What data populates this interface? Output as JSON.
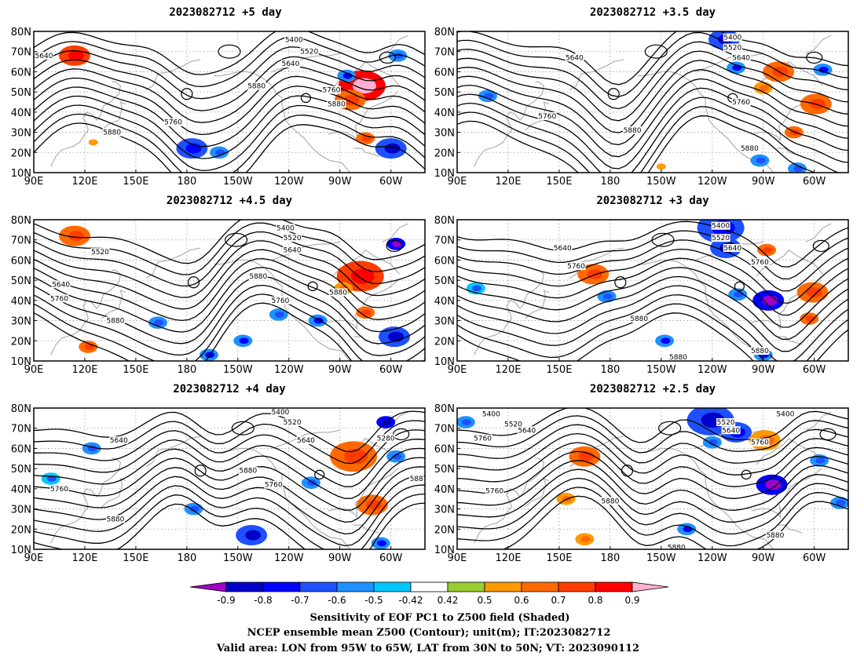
{
  "panels": [
    {
      "id": "p1",
      "title": "2023082712 +5 day",
      "contour_labels": [
        {
          "text": "5640",
          "lon": 96,
          "lat": 68
        },
        {
          "text": "5400",
          "lon": 243,
          "lat": 76
        },
        {
          "text": "5520",
          "lon": 252,
          "lat": 70
        },
        {
          "text": "5640",
          "lon": 241,
          "lat": 64
        },
        {
          "text": "5880",
          "lon": 221,
          "lat": 53
        },
        {
          "text": "5760",
          "lon": 265,
          "lat": 51
        },
        {
          "text": "5880",
          "lon": 268,
          "lat": 44
        },
        {
          "text": "5760",
          "lon": 172,
          "lat": 35
        },
        {
          "text": "5880",
          "lon": 136,
          "lat": 30
        }
      ],
      "blobs": [
        {
          "lon": 114,
          "lat": 68,
          "r": 2,
          "v": 0.7
        },
        {
          "lon": 283,
          "lat": 53,
          "r": 3,
          "v": 0.85
        },
        {
          "lon": 276,
          "lat": 46,
          "r": 2,
          "v": 0.6
        },
        {
          "lon": 285,
          "lat": 27,
          "r": 1,
          "v": 0.6
        },
        {
          "lon": 183,
          "lat": 22,
          "r": 2,
          "v": -0.65
        },
        {
          "lon": 199,
          "lat": 20,
          "r": 1,
          "v": -0.55
        },
        {
          "lon": 300,
          "lat": 22,
          "r": 2,
          "v": -0.7
        },
        {
          "lon": 274,
          "lat": 58,
          "r": 1,
          "v": -0.6
        },
        {
          "lon": 304,
          "lat": 68,
          "r": 1,
          "v": -0.55
        },
        {
          "lon": 125,
          "lat": 25,
          "r": 0,
          "v": 0.5
        }
      ]
    },
    {
      "id": "p2",
      "title": "2023082712 +3.5 day",
      "contour_labels": [
        {
          "text": "5400",
          "lon": 252,
          "lat": 77
        },
        {
          "text": "5520",
          "lon": 252,
          "lat": 72
        },
        {
          "text": "5640",
          "lon": 257,
          "lat": 67
        },
        {
          "text": "5640",
          "lon": 159,
          "lat": 67
        },
        {
          "text": "5760",
          "lon": 257,
          "lat": 45
        },
        {
          "text": "5760",
          "lon": 143,
          "lat": 38
        },
        {
          "text": "5880",
          "lon": 193,
          "lat": 31
        },
        {
          "text": "5880",
          "lon": 262,
          "lat": 22
        }
      ],
      "blobs": [
        {
          "lon": 247,
          "lat": 76,
          "r": 2,
          "v": -0.65
        },
        {
          "lon": 254,
          "lat": 62,
          "r": 1,
          "v": -0.6
        },
        {
          "lon": 279,
          "lat": 60,
          "r": 2,
          "v": 0.6
        },
        {
          "lon": 301,
          "lat": 44,
          "r": 2,
          "v": 0.65
        },
        {
          "lon": 288,
          "lat": 30,
          "r": 1,
          "v": 0.6
        },
        {
          "lon": 108,
          "lat": 48,
          "r": 1,
          "v": -0.55
        },
        {
          "lon": 305,
          "lat": 61,
          "r": 1,
          "v": -0.6
        },
        {
          "lon": 270,
          "lat": 52,
          "r": 1,
          "v": 0.5
        },
        {
          "lon": 268,
          "lat": 16,
          "r": 1,
          "v": -0.55
        },
        {
          "lon": 210,
          "lat": 13,
          "r": 0,
          "v": 0.5
        },
        {
          "lon": 290,
          "lat": 12,
          "r": 1,
          "v": -0.55
        }
      ]
    },
    {
      "id": "p3",
      "title": "2023082712 +4.5 day",
      "contour_labels": [
        {
          "text": "5400",
          "lon": 238,
          "lat": 76
        },
        {
          "text": "5520",
          "lon": 242,
          "lat": 71
        },
        {
          "text": "5640",
          "lon": 242,
          "lat": 65
        },
        {
          "text": "5520",
          "lon": 129,
          "lat": 64
        },
        {
          "text": "5880",
          "lon": 222,
          "lat": 52
        },
        {
          "text": "5640",
          "lon": 106,
          "lat": 48
        },
        {
          "text": "5760",
          "lon": 105,
          "lat": 41
        },
        {
          "text": "5760",
          "lon": 235,
          "lat": 40
        },
        {
          "text": "5880",
          "lon": 269,
          "lat": 44
        },
        {
          "text": "5880",
          "lon": 138,
          "lat": 30
        }
      ],
      "blobs": [
        {
          "lon": 114,
          "lat": 72,
          "r": 2,
          "v": 0.65
        },
        {
          "lon": 282,
          "lat": 52,
          "r": 3,
          "v": 0.75
        },
        {
          "lon": 272,
          "lat": 46,
          "r": 1,
          "v": 0.5
        },
        {
          "lon": 303,
          "lat": 68,
          "r": 1,
          "v": -0.8
        },
        {
          "lon": 302,
          "lat": 22,
          "r": 2,
          "v": -0.7
        },
        {
          "lon": 257,
          "lat": 30,
          "r": 1,
          "v": -0.6
        },
        {
          "lon": 213,
          "lat": 20,
          "r": 1,
          "v": -0.6
        },
        {
          "lon": 193,
          "lat": 13,
          "r": 1,
          "v": -0.6
        },
        {
          "lon": 234,
          "lat": 33,
          "r": 1,
          "v": -0.55
        },
        {
          "lon": 285,
          "lat": 34,
          "r": 1,
          "v": 0.6
        },
        {
          "lon": 122,
          "lat": 17,
          "r": 1,
          "v": 0.6
        },
        {
          "lon": 163,
          "lat": 29,
          "r": 1,
          "v": -0.55
        }
      ]
    },
    {
      "id": "p4",
      "title": "2023082712 +3 day",
      "contour_labels": [
        {
          "text": "5400",
          "lon": 245,
          "lat": 77
        },
        {
          "text": "5520",
          "lon": 245,
          "lat": 71
        },
        {
          "text": "5640",
          "lon": 252,
          "lat": 66
        },
        {
          "text": "5640",
          "lon": 152,
          "lat": 66
        },
        {
          "text": "5760",
          "lon": 160,
          "lat": 57
        },
        {
          "text": "5760",
          "lon": 268,
          "lat": 59
        },
        {
          "text": "5880",
          "lon": 197,
          "lat": 31
        },
        {
          "text": "5880",
          "lon": 268,
          "lat": 15
        },
        {
          "text": "5880",
          "lon": 220,
          "lat": 12
        }
      ],
      "blobs": [
        {
          "lon": 245,
          "lat": 76,
          "r": 3,
          "v": -0.65
        },
        {
          "lon": 248,
          "lat": 66,
          "r": 2,
          "v": -0.7
        },
        {
          "lon": 272,
          "lat": 65,
          "r": 1,
          "v": 0.65
        },
        {
          "lon": 273,
          "lat": 40,
          "r": 2,
          "v": -0.8
        },
        {
          "lon": 299,
          "lat": 44,
          "r": 2,
          "v": 0.6
        },
        {
          "lon": 297,
          "lat": 31,
          "r": 1,
          "v": 0.6
        },
        {
          "lon": 170,
          "lat": 53,
          "r": 2,
          "v": 0.6
        },
        {
          "lon": 178,
          "lat": 42,
          "r": 1,
          "v": -0.55
        },
        {
          "lon": 212,
          "lat": 20,
          "r": 1,
          "v": -0.6
        },
        {
          "lon": 255,
          "lat": 43,
          "r": 1,
          "v": -0.55
        },
        {
          "lon": 270,
          "lat": 13,
          "r": 1,
          "v": -0.6
        },
        {
          "lon": 101,
          "lat": 46,
          "r": 1,
          "v": -0.5
        }
      ]
    },
    {
      "id": "p5",
      "title": "2023082712 +4 day",
      "contour_labels": [
        {
          "text": "5400",
          "lon": 235,
          "lat": 78
        },
        {
          "text": "5520",
          "lon": 242,
          "lat": 73
        },
        {
          "text": "5640",
          "lon": 140,
          "lat": 64
        },
        {
          "text": "5640",
          "lon": 250,
          "lat": 64
        },
        {
          "text": "5280",
          "lon": 297,
          "lat": 65
        },
        {
          "text": "5880",
          "lon": 216,
          "lat": 49
        },
        {
          "text": "5760",
          "lon": 231,
          "lat": 42
        },
        {
          "text": "5760",
          "lon": 105,
          "lat": 40
        },
        {
          "text": "5880",
          "lon": 138,
          "lat": 25
        },
        {
          "text": "588",
          "lon": 315,
          "lat": 45
        }
      ],
      "blobs": [
        {
          "lon": 278,
          "lat": 56,
          "r": 3,
          "v": 0.65
        },
        {
          "lon": 297,
          "lat": 73,
          "r": 1,
          "v": -0.75
        },
        {
          "lon": 289,
          "lat": 32,
          "r": 2,
          "v": 0.6
        },
        {
          "lon": 218,
          "lat": 17,
          "r": 2,
          "v": -0.7
        },
        {
          "lon": 253,
          "lat": 43,
          "r": 1,
          "v": -0.55
        },
        {
          "lon": 124,
          "lat": 60,
          "r": 1,
          "v": -0.55
        },
        {
          "lon": 100,
          "lat": 45,
          "r": 1,
          "v": -0.5
        },
        {
          "lon": 184,
          "lat": 30,
          "r": 1,
          "v": -0.55
        },
        {
          "lon": 294,
          "lat": 13,
          "r": 1,
          "v": -0.6
        },
        {
          "lon": 303,
          "lat": 56,
          "r": 1,
          "v": -0.55
        }
      ]
    },
    {
      "id": "p6",
      "title": "2023082712 +2.5 day",
      "contour_labels": [
        {
          "text": "5400",
          "lon": 110,
          "lat": 77
        },
        {
          "text": "5520",
          "lon": 123,
          "lat": 72
        },
        {
          "text": "5640",
          "lon": 131,
          "lat": 69
        },
        {
          "text": "5760",
          "lon": 105,
          "lat": 65
        },
        {
          "text": "5520",
          "lon": 248,
          "lat": 73
        },
        {
          "text": "5640",
          "lon": 251,
          "lat": 69
        },
        {
          "text": "5400",
          "lon": 283,
          "lat": 77
        },
        {
          "text": "5760",
          "lon": 268,
          "lat": 63
        },
        {
          "text": "5760",
          "lon": 112,
          "lat": 39
        },
        {
          "text": "5880",
          "lon": 180,
          "lat": 34
        },
        {
          "text": "5880",
          "lon": 277,
          "lat": 17
        },
        {
          "text": "5880",
          "lon": 219,
          "lat": 11
        }
      ],
      "blobs": [
        {
          "lon": 239,
          "lat": 74,
          "r": 3,
          "v": -0.7
        },
        {
          "lon": 254,
          "lat": 68,
          "r": 2,
          "v": -0.65
        },
        {
          "lon": 240,
          "lat": 63,
          "r": 1,
          "v": -0.55
        },
        {
          "lon": 271,
          "lat": 64,
          "r": 2,
          "v": 0.55
        },
        {
          "lon": 165,
          "lat": 56,
          "r": 2,
          "v": 0.65
        },
        {
          "lon": 275,
          "lat": 42,
          "r": 2,
          "v": -0.8
        },
        {
          "lon": 303,
          "lat": 54,
          "r": 1,
          "v": -0.55
        },
        {
          "lon": 165,
          "lat": 15,
          "r": 1,
          "v": 0.5
        },
        {
          "lon": 154,
          "lat": 35,
          "r": 1,
          "v": 0.5
        },
        {
          "lon": 225,
          "lat": 20,
          "r": 1,
          "v": -0.6
        },
        {
          "lon": 315,
          "lat": 33,
          "r": 1,
          "v": -0.55
        },
        {
          "lon": 95,
          "lat": 73,
          "r": 1,
          "v": -0.55
        }
      ]
    }
  ],
  "axes": {
    "lat_labels": [
      "80N",
      "70N",
      "60N",
      "50N",
      "40N",
      "30N",
      "20N",
      "10N"
    ],
    "lat_values": [
      80,
      70,
      60,
      50,
      40,
      30,
      20,
      10
    ],
    "lon_labels": [
      "90E",
      "120E",
      "150E",
      "180",
      "150W",
      "120W",
      "90W",
      "60W"
    ],
    "lon_values": [
      90,
      120,
      150,
      180,
      210,
      240,
      270,
      300
    ],
    "lon_range": [
      90,
      320
    ],
    "lat_range": [
      10,
      80
    ]
  },
  "colorbar": {
    "levels": [
      "-0.9",
      "-0.8",
      "-0.7",
      "-0.6",
      "-0.5",
      "-0.42",
      "0.42",
      "0.5",
      "0.6",
      "0.7",
      "0.8",
      "0.9"
    ],
    "colors": [
      "#a000c8",
      "#0000c8",
      "#0000ff",
      "#1e50ff",
      "#1e90ff",
      "#00c8ff",
      "#ffffff",
      "#9acd32",
      "#ff9a00",
      "#ff6a00",
      "#ff3c00",
      "#ff0000",
      "#ffb0d0"
    ]
  },
  "captions": [
    "Sensitivity of EOF PC1 to Z500 field (Shaded)",
    "NCEP ensemble mean Z500 (Contour); unit(m); IT:2023082712",
    "Valid area: LON from 95W to 65W, LAT from 30N to 50N; VT: 2023090112"
  ]
}
